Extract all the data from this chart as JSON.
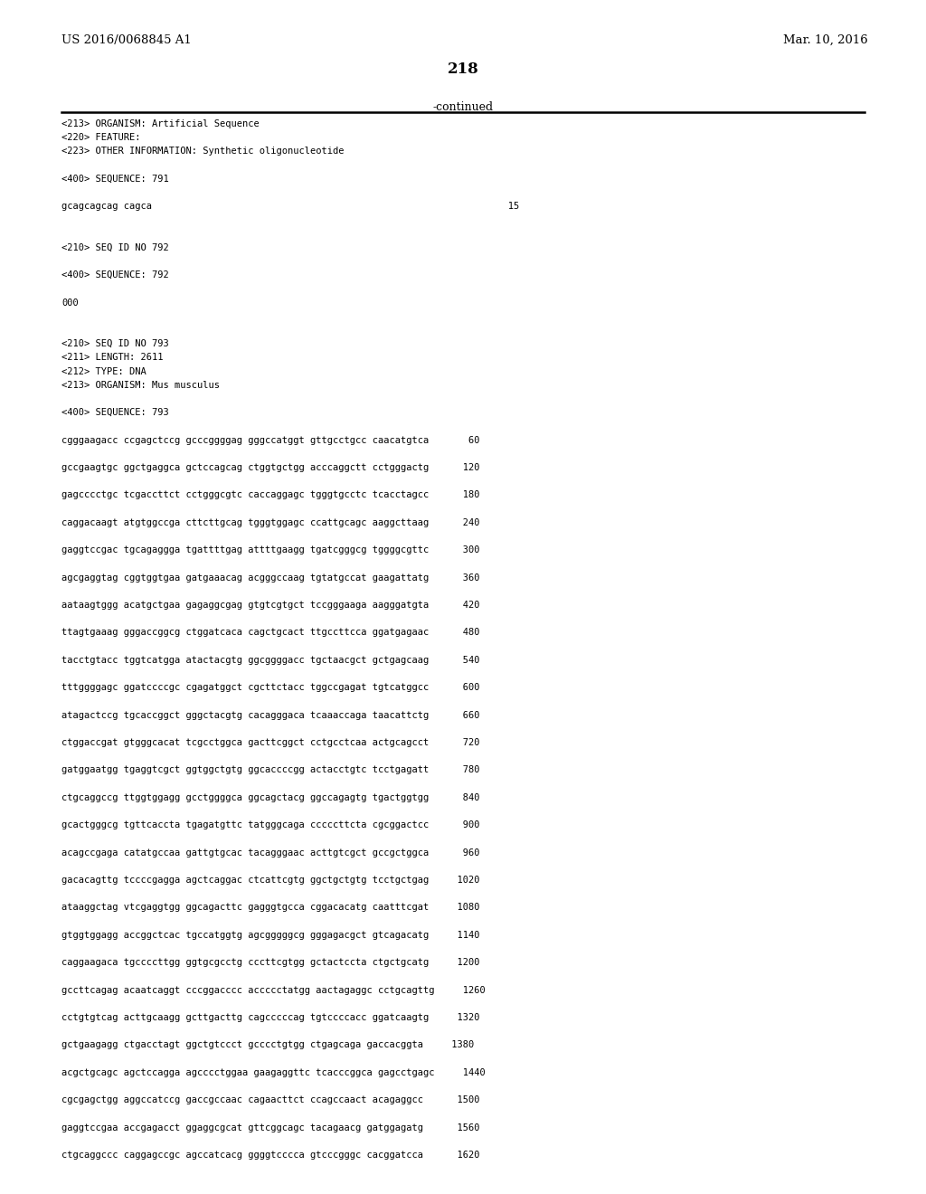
{
  "header_left": "US 2016/0068845 A1",
  "header_right": "Mar. 10, 2016",
  "page_number": "218",
  "continued_label": "-continued",
  "background_color": "#ffffff",
  "text_color": "#000000",
  "content_lines": [
    "<213> ORGANISM: Artificial Sequence",
    "<220> FEATURE:",
    "<223> OTHER INFORMATION: Synthetic oligonucleotide",
    "",
    "<400> SEQUENCE: 791",
    "",
    "gcagcagcag cagca                                                               15",
    "",
    "",
    "<210> SEQ ID NO 792",
    "",
    "<400> SEQUENCE: 792",
    "",
    "000",
    "",
    "",
    "<210> SEQ ID NO 793",
    "<211> LENGTH: 2611",
    "<212> TYPE: DNA",
    "<213> ORGANISM: Mus musculus",
    "",
    "<400> SEQUENCE: 793",
    "",
    "cgggaagacc ccgagctccg gcccggggag gggccatggt gttgcctgcc caacatgtca       60",
    "",
    "gccgaagtgc ggctgaggca gctccagcag ctggtgctgg acccaggctt cctgggactg      120",
    "",
    "gagcccctgc tcgaccttct cctgggcgtc caccaggagc tgggtgcctc tcacctagcc      180",
    "",
    "caggacaagt atgtggccga cttcttgcag tgggtggagc ccattgcagc aaggcttaag      240",
    "",
    "gaggtccgac tgcagaggga tgattttgag attttgaagg tgatcgggcg tggggcgttc      300",
    "",
    "agcgaggtag cggtggtgaa gatgaaacag acgggccaag tgtatgccat gaagattatg      360",
    "",
    "aataagtggg acatgctgaa gagaggcgag gtgtcgtgct tccgggaaga aagggatgta      420",
    "",
    "ttagtgaaag gggaccggcg ctggatcaca cagctgcact ttgccttcca ggatgagaac      480",
    "",
    "tacctgtacc tggtcatgga atactacgtg ggcggggacc tgctaacgct gctgagcaag      540",
    "",
    "tttggggagc ggatccccgc cgagatggct cgcttctacc tggccgagat tgtcatggcc      600",
    "",
    "atagactccg tgcaccggct gggctacgtg cacagggaca tcaaaccaga taacattctg      660",
    "",
    "ctggaccgat gtgggcacat tcgcctggca gacttcggct cctgcctcaa actgcagcct      720",
    "",
    "gatggaatgg tgaggtcgct ggtggctgtg ggcaccccgg actacctgtc tcctgagatt      780",
    "",
    "ctgcaggccg ttggtggagg gcctggggca ggcagctacg ggccagagtg tgactggtgg      840",
    "",
    "gcactgggcg tgttcaccta tgagatgttc tatgggcaga cccccttcta cgcggactcc      900",
    "",
    "acagccgaga catatgccaa gattgtgcac tacagggaac acttgtcgct gccgctggca      960",
    "",
    "gacacagttg tccccgagga agctcaggac ctcattcgtg ggctgctgtg tcctgctgag     1020",
    "",
    "ataaggctag vtcgaggtgg ggcagacttc gagggtgcca cggacacatg caatttcgat     1080",
    "",
    "gtggtggagg accggctcac tgccatggtg agcgggggcg gggagacgct gtcagacatg     1140",
    "",
    "caggaagaca tgccccttgg ggtgcgcctg cccttcgtgg gctactccta ctgctgcatg     1200",
    "",
    "gccttcagag acaatcaggt cccggacccc accccctatgg aactagaggc cctgcagttg     1260",
    "",
    "cctgtgtcag acttgcaagg gcttgacttg cagcccccag tgtccccacc ggatcaagtg     1320",
    "",
    "gctgaagagg ctgacctagt ggctgtccct gcccctgtgg ctgagcaga gaccacggta     1380",
    "",
    "acgctgcagc agctccagga agcccctggaa gaagaggttc tcacccggca gagcctgagc     1440",
    "",
    "cgcgagctgg aggccatccg gaccgccaac cagaacttct ccagccaact acagaggcc      1500",
    "",
    "gaggtccgaa accgagacct ggaggcgcat gttcggcagc tacagaacg gatggagatg      1560",
    "",
    "ctgcaggccc caggagccgc agccatcacg ggggtcccca gtcccgggc cacggatcca      1620"
  ]
}
